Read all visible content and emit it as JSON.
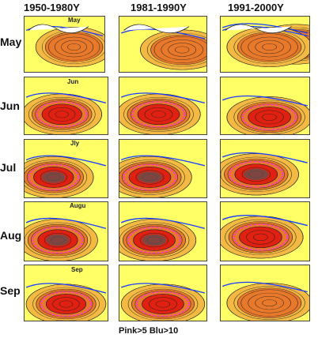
{
  "columns": [
    "1950-1980Y",
    "1981-1990Y",
    "1991-2000Y"
  ],
  "rows": [
    "May",
    "Jun",
    "Jul",
    "Aug",
    "Sep"
  ],
  "inset_labels": {
    "may": "May",
    "jun": "Jun",
    "jul": "Jly",
    "aug": "Augu",
    "sep": "Sep"
  },
  "legend_text": "Pink>5  Blu>10",
  "colors": {
    "background": "#ffff66",
    "contour": "#222222",
    "shade_low": "#f4b942",
    "shade_mid": "#e8782a",
    "shade_high": "#e02010",
    "pink": "#ff33cc",
    "blue": "#1a3cff",
    "land": "#555555"
  }
}
